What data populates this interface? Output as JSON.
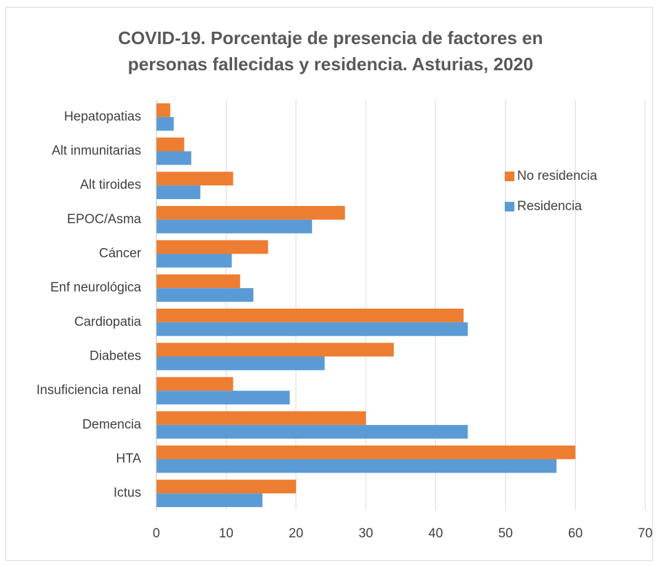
{
  "chart_data": {
    "type": "hbar",
    "title": "COVID-19. Porcentaje de presencia de factores en personas fallecidas y residencia. Asturias, 2020",
    "categories": [
      "Hepatopatias",
      "Alt inmunitarias",
      "Alt tiroides",
      "EPOC/Asma",
      "Cáncer",
      "Enf neurológica",
      "Cardiopatia",
      "Diabetes",
      "Insuficiencia renal",
      "Demencia",
      "HTA",
      "Ictus"
    ],
    "series": [
      {
        "name": "No residencia",
        "color": "#ed7d31",
        "values": [
          2,
          4,
          11,
          27,
          16,
          12,
          44,
          34,
          11,
          30,
          60,
          20
        ]
      },
      {
        "name": "Residencia",
        "color": "#5b9bd5",
        "values": [
          2.5,
          5,
          6.3,
          22.3,
          10.8,
          13.9,
          44.6,
          24.1,
          19.1,
          44.6,
          57.3,
          15.2
        ]
      }
    ],
    "xlim": [
      0,
      70
    ],
    "xticks": [
      0,
      10,
      20,
      30,
      40,
      50,
      60,
      70
    ],
    "grid": true,
    "legend": "right"
  }
}
